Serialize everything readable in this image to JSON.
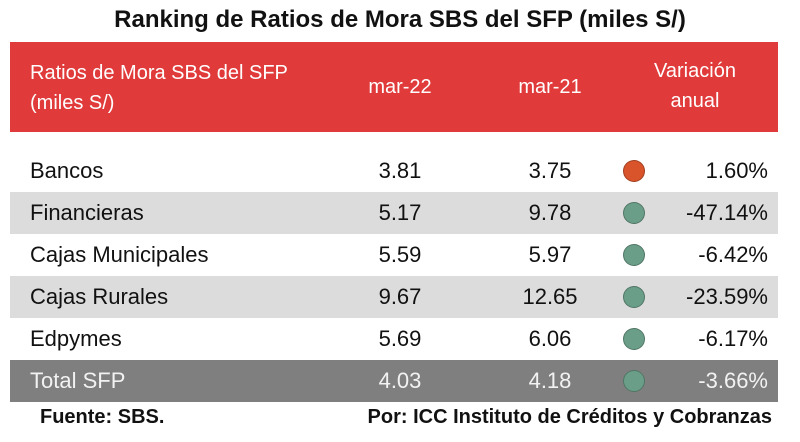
{
  "title": "Ranking de Ratios de Mora SBS del SFP (miles S/)",
  "header": {
    "name": "Ratios de Mora SBS del SFP (miles S/)",
    "col1": "mar-22",
    "col2": "mar-21",
    "variation": "Variación anual"
  },
  "rows": [
    {
      "name": "Bancos",
      "v1": "3.81",
      "v2": "3.75",
      "var": "1.60%",
      "dot_color": "#d9542b"
    },
    {
      "name": "Financieras",
      "v1": "5.17",
      "v2": "9.78",
      "var": "-47.14%",
      "dot_color": "#6b9e88"
    },
    {
      "name": "Cajas Municipales",
      "v1": "5.59",
      "v2": "5.97",
      "var": "-6.42%",
      "dot_color": "#6b9e88"
    },
    {
      "name": "Cajas Rurales",
      "v1": "9.67",
      "v2": "12.65",
      "var": "-23.59%",
      "dot_color": "#6b9e88"
    },
    {
      "name": "Edpymes",
      "v1": "5.69",
      "v2": "6.06",
      "var": "-6.17%",
      "dot_color": "#6b9e88"
    }
  ],
  "total": {
    "name": "Total SFP",
    "v1": "4.03",
    "v2": "4.18",
    "var": "-3.66%",
    "dot_color": "#6b9e88"
  },
  "colors": {
    "header_bg": "#e03a3a",
    "alt_row_bg": "#dcdcdc",
    "total_row_bg": "#7f7f7f",
    "indicator_up": "#d9542b",
    "indicator_down": "#6b9e88"
  },
  "footer": {
    "source": "Fuente: SBS.",
    "credit": "Por: ICC Instituto de Créditos y Cobranzas"
  }
}
